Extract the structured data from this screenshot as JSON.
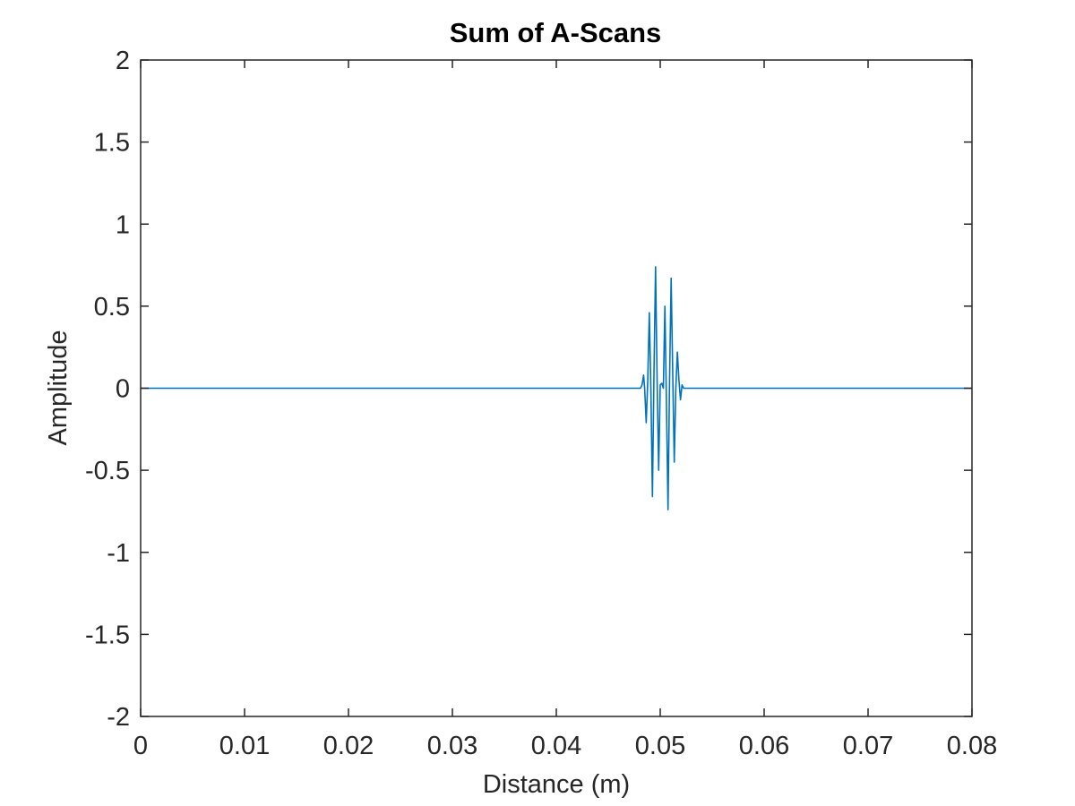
{
  "chart_data": {
    "type": "line",
    "title": "Sum of A-Scans",
    "xlabel": "Distance (m)",
    "ylabel": "Amplitude",
    "xlim": [
      0,
      0.08
    ],
    "ylim": [
      -2,
      2
    ],
    "xticks": [
      0,
      0.01,
      0.02,
      0.03,
      0.04,
      0.05,
      0.06,
      0.07,
      0.08
    ],
    "xtick_labels": [
      "0",
      "0.01",
      "0.02",
      "0.03",
      "0.04",
      "0.05",
      "0.06",
      "0.07",
      "0.08"
    ],
    "yticks": [
      -2,
      -1.5,
      -1,
      -0.5,
      0,
      0.5,
      1,
      1.5,
      2
    ],
    "ytick_labels": [
      "-2",
      "-1.5",
      "-1",
      "-0.5",
      "0",
      "0.5",
      "1",
      "1.5",
      "2"
    ],
    "grid": false,
    "series": [
      {
        "color": "#0072BD",
        "x": [
          0,
          0.0478,
          0.0481,
          0.04825,
          0.0484,
          0.0485,
          0.04865,
          0.0488,
          0.04895,
          0.0491,
          0.04925,
          0.0494,
          0.04955,
          0.0497,
          0.04985,
          0.05,
          0.05015,
          0.0503,
          0.05045,
          0.0506,
          0.05075,
          0.0509,
          0.05105,
          0.0512,
          0.05135,
          0.0515,
          0.05165,
          0.0518,
          0.05195,
          0.0521,
          0.05225,
          0.0524,
          0.05255,
          0.0527,
          0.0529,
          0.0531,
          0.08
        ],
        "y": [
          0,
          0,
          0,
          0.02,
          0.08,
          0.0,
          -0.21,
          0.05,
          0.46,
          0.0,
          -0.66,
          0.1,
          0.74,
          0.05,
          -0.5,
          0.02,
          0.03,
          0.0,
          0.5,
          -0.1,
          -0.74,
          0.05,
          0.67,
          0.1,
          -0.45,
          0.0,
          0.22,
          0.05,
          -0.07,
          0.02,
          0.0,
          0,
          0,
          0,
          0,
          0,
          0
        ]
      }
    ]
  }
}
